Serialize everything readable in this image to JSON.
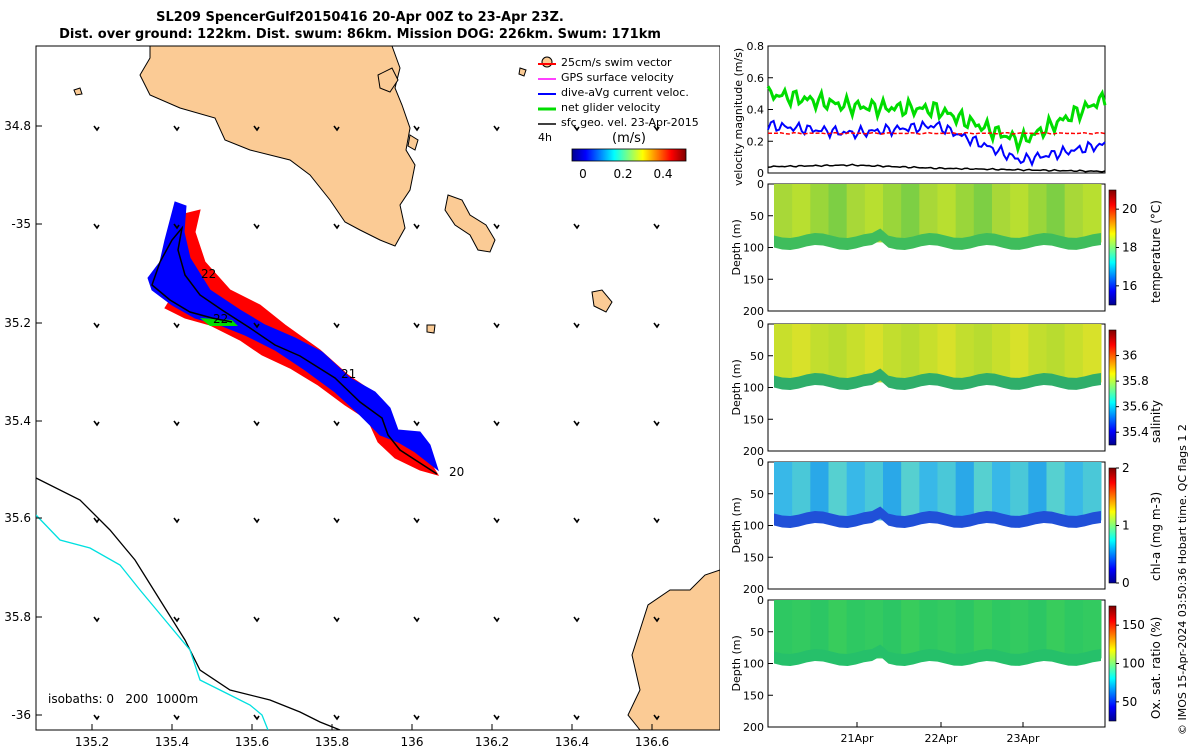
{
  "title": {
    "line1": "SL209 SpencerGulf20150416 20-Apr 00Z to 23-Apr 23Z.",
    "line2": "Dist. over ground: 122km. Dist. swum: 86km. Mission DOG: 226km. Swum: 171km"
  },
  "map": {
    "lon_ticks": [
      "135.2",
      "135.4",
      "135.6",
      "135.8",
      "136",
      "136.2",
      "136.4",
      "136.6"
    ],
    "lat_ticks": [
      "34.8",
      "-35",
      "35.2",
      "35.4",
      "35.6",
      "35.8",
      "-36"
    ],
    "day_labels": [
      "20",
      "21",
      "22",
      "22"
    ],
    "isobaths_label": "isobaths: 0   200  1000m",
    "legend": {
      "items": [
        "25cm/s swim vector",
        "GPS surface velocity",
        "dive-aVg current veloc.",
        "net glider velocity",
        "sfc geo. vel. 23-Apr-2015"
      ],
      "interval": "4h",
      "colorbar_title": "(m/s)",
      "colorbar_ticks": [
        "0",
        "0.2",
        "0.4"
      ]
    },
    "colors": {
      "land": "#fbcb95",
      "swim": "#ff0000",
      "current": "#0000ff",
      "net": "#00dd00",
      "gps": "#ff00ff",
      "isobath200": "#00e0e0"
    }
  },
  "velocity_panel": {
    "ylabel": "velocity magnitude (m/s)",
    "yticks": [
      "0",
      "0.2",
      "0.4",
      "0.6",
      "0.8"
    ]
  },
  "section_panels": [
    {
      "name": "temperature",
      "clabel": "temperature (°C)",
      "cticks": [
        "16",
        "18",
        "20"
      ]
    },
    {
      "name": "salinity",
      "clabel": "salinity",
      "cticks": [
        "35.4",
        "35.6",
        "35.8",
        "36"
      ]
    },
    {
      "name": "chla",
      "clabel": "chl-a (mg m-3)",
      "cticks": [
        "0",
        "1",
        "2"
      ]
    },
    {
      "name": "oxygen",
      "clabel": "Ox. sat. ratio (%)",
      "cticks": [
        "50",
        "100",
        "150"
      ]
    }
  ],
  "depth_label": "Depth (m)",
  "depth_ticks": [
    "0",
    "50",
    "100",
    "150",
    "200"
  ],
  "time_ticks": [
    "21Apr",
    "22Apr",
    "23Apr"
  ],
  "footer": "© IMOS 15-Apr-2024 03:50:36 Hobart time. QC flags 1  2",
  "chart_data": [
    {
      "type": "line",
      "title": "",
      "xlabel": "",
      "ylabel": "velocity magnitude (m/s)",
      "ylim": [
        0,
        0.8
      ],
      "x": [
        "20-Apr",
        "21-Apr",
        "22-Apr",
        "23-Apr",
        "24-Apr"
      ],
      "series": [
        {
          "name": "net glider velocity",
          "color": "#00dd00",
          "values": [
            0.5,
            0.42,
            0.4,
            0.2,
            0.47
          ]
        },
        {
          "name": "dive-aVg current veloc.",
          "color": "#0000ff",
          "values": [
            0.3,
            0.25,
            0.3,
            0.08,
            0.18
          ]
        },
        {
          "name": "25cm/s swim vector",
          "color": "#ff0000",
          "values": [
            0.25,
            0.25,
            0.25,
            0.25,
            0.25
          ]
        },
        {
          "name": "sfc geo. vel. 23-Apr-2015",
          "color": "#000000",
          "values": [
            0.04,
            0.05,
            0.03,
            0.02,
            0.01
          ]
        }
      ]
    },
    {
      "type": "heatmap",
      "name": "temperature",
      "ylim": [
        200,
        0
      ],
      "clim": [
        15,
        21
      ]
    },
    {
      "type": "heatmap",
      "name": "salinity",
      "ylim": [
        200,
        0
      ],
      "clim": [
        35.3,
        36.2
      ]
    },
    {
      "type": "heatmap",
      "name": "chla",
      "ylim": [
        200,
        0
      ],
      "clim": [
        0,
        2
      ]
    },
    {
      "type": "heatmap",
      "name": "oxygen",
      "ylim": [
        200,
        0
      ],
      "clim": [
        25,
        175
      ]
    }
  ]
}
